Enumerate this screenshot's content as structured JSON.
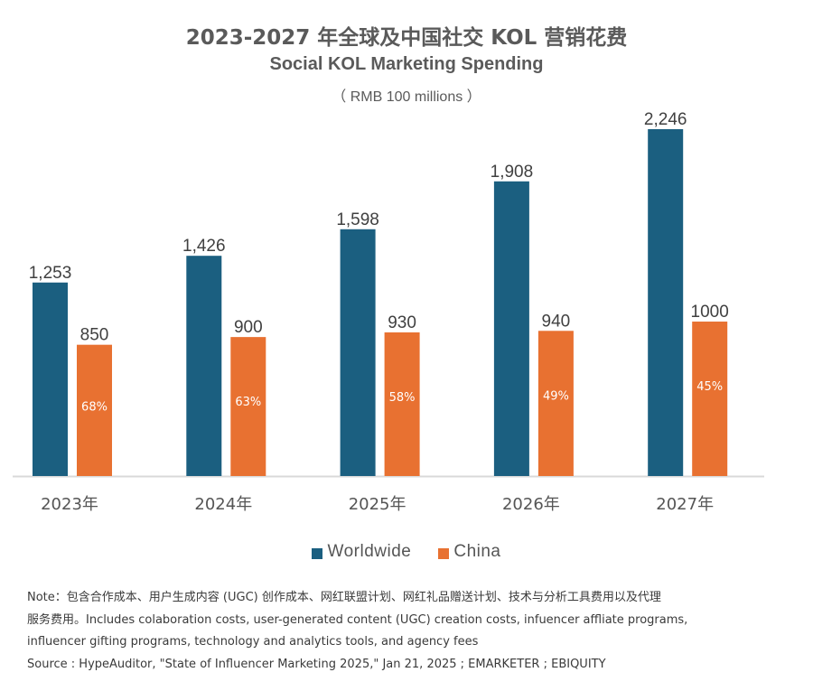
{
  "chart_data": {
    "type": "bar",
    "title": "2023-2027 年全球及中国社交 KOL 营销花费",
    "subtitle": "Social KOL Marketing Spending",
    "unit_label": "（ RMB 100 millions ）",
    "xlabel": "",
    "ylabel": "",
    "ylim": [
      0,
      2246
    ],
    "grid": false,
    "legend_position": "bottom-center",
    "categories": [
      "2023年",
      "2024年",
      "2025年",
      "2026年",
      "2027年"
    ],
    "series": [
      {
        "name": "Worldwide",
        "color": "#1b5f80",
        "values": [
          1253,
          1426,
          1598,
          1908,
          2246
        ],
        "labels": [
          "1,253",
          "1,426",
          "1,598",
          "1,908",
          "2,246"
        ]
      },
      {
        "name": "China",
        "color": "#e87131",
        "values": [
          850,
          900,
          930,
          940,
          1000
        ],
        "labels": [
          "850",
          "900",
          "930",
          "940",
          "1000"
        ],
        "inner_labels": [
          "68%",
          "63%",
          "58%",
          "49%",
          "45%"
        ]
      }
    ]
  },
  "footer": {
    "note_line1": "Note：包含合作成本、用户生成内容 (UGC) 创作成本、网红联盟计划、网红礼品赠送计划、技术与分析工具费用以及代理",
    "note_line2": "服务费用。Includes colaboration costs, user-generated content (UGC) creation costs, infuencer affliate programs,",
    "note_line3": "influencer gifting programs, technology and analytics tools, and agency fees",
    "source": "Source : HypeAuditor, \"State of Influencer Marketing 2025,\" Jan 21, 2025 ; EMARKETER ; EBIQUITY"
  }
}
